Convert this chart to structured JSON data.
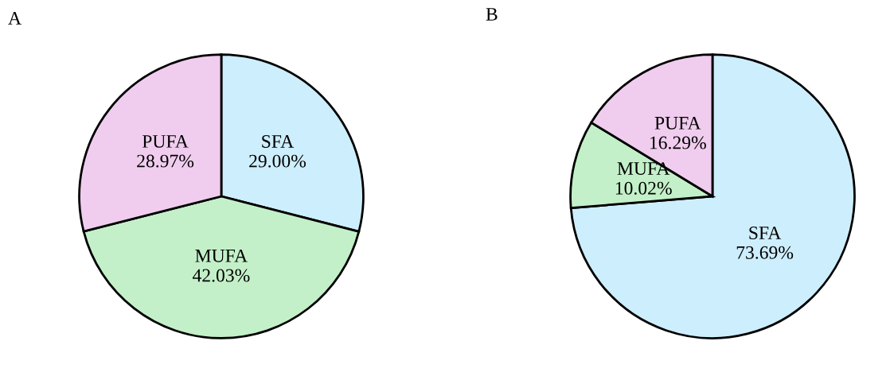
{
  "chart_data": [
    {
      "type": "pie",
      "title": "A",
      "categories": [
        "SFA",
        "MUFA",
        "PUFA"
      ],
      "values": [
        29.0,
        42.03,
        28.97
      ],
      "colors": [
        "#cdeefc",
        "#c3f0c8",
        "#f0cdee"
      ],
      "value_labels": [
        "29.00%",
        "42.03%",
        "28.97%"
      ]
    },
    {
      "type": "pie",
      "title": "B",
      "categories": [
        "SFA",
        "MUFA",
        "PUFA"
      ],
      "values": [
        73.69,
        10.02,
        16.29
      ],
      "colors": [
        "#cdeefc",
        "#c3f0c8",
        "#f0cdee"
      ],
      "value_labels": [
        "73.69%",
        "10.02%",
        "16.29%"
      ]
    }
  ]
}
